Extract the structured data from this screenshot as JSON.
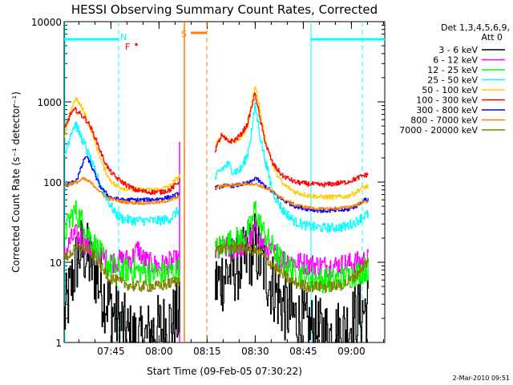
{
  "chart_data": {
    "type": "line",
    "title": "HESSI Observing Summary Count Rates, Corrected",
    "xlabel": "Start Time (09-Feb-05 07:30:22)",
    "ylabel": "Corrected Count Rate (s⁻¹ detector⁻¹)",
    "yscale": "log",
    "ylim": [
      1,
      10000
    ],
    "xlim_minutes_after_start": [
      0,
      100
    ],
    "x_tick_labels": [
      "07:45",
      "08:00",
      "08:15",
      "08:30",
      "08:45",
      "09:00"
    ],
    "x_tick_minutes": [
      14.6,
      29.6,
      44.6,
      59.6,
      74.6,
      89.6
    ],
    "y_tick_labels": [
      "1",
      "10",
      "100",
      "1000",
      "10000"
    ],
    "y_tick_values": [
      1,
      10,
      100,
      1000,
      10000
    ],
    "legend": {
      "title_line1": "Det 1,3,4,5,6,9,",
      "title_line2": "Att 0",
      "placement": "right"
    },
    "date_stamp": "2-Mar-2010 09:51",
    "data_gap_minutes": [
      36,
      47
    ],
    "markers": {
      "night_label": "N",
      "flare_label": "F",
      "saa_label": "S",
      "night_intervals_minutes": [
        [
          0,
          17
        ],
        [
          77,
          100
        ]
      ],
      "saa_interval_minutes": [
        39.5,
        44.5
      ],
      "flare_point_minute": 22.5,
      "flare_point_value": 5200,
      "cyan_dashed_minutes": [
        17,
        93
      ],
      "cyan_solid_minutes": [
        77
      ],
      "orange_solid_minutes": [
        37.5
      ],
      "orange_dashed_minutes": [
        44.5
      ],
      "magenta_solid_minutes": [
        36
      ]
    },
    "series": [
      {
        "name": "3 - 6 keV",
        "color": "#000000",
        "noise": 0.45,
        "points": [
          [
            0,
            2
          ],
          [
            2,
            5
          ],
          [
            4,
            11
          ],
          [
            5,
            14
          ],
          [
            6.5,
            13
          ],
          [
            8,
            10
          ],
          [
            10,
            7
          ],
          [
            12,
            4
          ],
          [
            14,
            3
          ],
          [
            16,
            2
          ],
          [
            18,
            1.7
          ],
          [
            20,
            1.2
          ],
          [
            24,
            1
          ],
          [
            28,
            1.4
          ],
          [
            32,
            1.6
          ],
          [
            36,
            2.2
          ],
          [
            47,
            5
          ],
          [
            50,
            7
          ],
          [
            53,
            8.5
          ],
          [
            56,
            10
          ],
          [
            58,
            13
          ],
          [
            59.5,
            16
          ],
          [
            61,
            11
          ],
          [
            64,
            6
          ],
          [
            68,
            3
          ],
          [
            72,
            2
          ],
          [
            76,
            1.5
          ],
          [
            80,
            1.3
          ],
          [
            84,
            1.2
          ],
          [
            88,
            1.5
          ],
          [
            92,
            2.3
          ],
          [
            95,
            2.8
          ]
        ]
      },
      {
        "name": "6 - 12 keV",
        "color": "#ff00ff",
        "noise": 0.14,
        "points": [
          [
            0,
            12
          ],
          [
            2,
            19
          ],
          [
            3.5,
            22
          ],
          [
            5,
            20
          ],
          [
            7,
            16
          ],
          [
            10,
            13
          ],
          [
            14,
            10
          ],
          [
            18,
            10.5
          ],
          [
            21,
            11
          ],
          [
            23,
            15
          ],
          [
            24.5,
            11
          ],
          [
            27,
            9.5
          ],
          [
            30,
            9
          ],
          [
            33,
            10
          ],
          [
            36,
            10.5
          ],
          [
            47,
            13
          ],
          [
            50,
            15
          ],
          [
            53,
            15
          ],
          [
            56,
            16
          ],
          [
            58.5,
            20
          ],
          [
            59.5,
            28
          ],
          [
            61,
            19
          ],
          [
            64,
            14
          ],
          [
            68,
            11
          ],
          [
            72,
            10
          ],
          [
            76,
            9.5
          ],
          [
            80,
            9
          ],
          [
            84,
            9
          ],
          [
            88,
            9.5
          ],
          [
            92,
            10
          ],
          [
            95,
            11
          ]
        ]
      },
      {
        "name": "12 - 25 keV",
        "color": "#00ff00",
        "noise": 0.16,
        "points": [
          [
            0,
            22
          ],
          [
            2,
            37
          ],
          [
            3.5,
            43
          ],
          [
            5,
            35
          ],
          [
            7,
            25
          ],
          [
            10,
            15
          ],
          [
            14,
            9
          ],
          [
            18,
            8
          ],
          [
            22,
            8
          ],
          [
            26,
            7.5
          ],
          [
            30,
            7
          ],
          [
            33,
            7.5
          ],
          [
            36,
            8
          ],
          [
            47,
            14
          ],
          [
            50,
            17
          ],
          [
            53,
            19
          ],
          [
            56,
            20
          ],
          [
            58.5,
            30
          ],
          [
            59.5,
            48
          ],
          [
            61,
            30
          ],
          [
            64,
            17
          ],
          [
            68,
            10
          ],
          [
            72,
            7.5
          ],
          [
            76,
            6.5
          ],
          [
            80,
            6
          ],
          [
            84,
            6
          ],
          [
            88,
            6.5
          ],
          [
            92,
            7.5
          ],
          [
            95,
            8.5
          ]
        ]
      },
      {
        "name": "25 - 50 keV",
        "color": "#00ffff",
        "noise": 0.06,
        "points": [
          [
            0,
            200
          ],
          [
            2,
            420
          ],
          [
            3.5,
            540
          ],
          [
            5,
            380
          ],
          [
            6.5,
            280
          ],
          [
            8,
            195
          ],
          [
            10,
            120
          ],
          [
            12,
            80
          ],
          [
            14,
            55
          ],
          [
            16,
            40
          ],
          [
            18,
            35
          ],
          [
            22,
            33
          ],
          [
            26,
            33
          ],
          [
            30,
            33
          ],
          [
            33,
            35
          ],
          [
            35,
            42
          ],
          [
            36,
            45
          ],
          [
            47,
            110
          ],
          [
            49,
            145
          ],
          [
            51,
            165
          ],
          [
            53,
            135
          ],
          [
            55,
            145
          ],
          [
            57,
            210
          ],
          [
            58.5,
            450
          ],
          [
            59.5,
            920
          ],
          [
            61,
            380
          ],
          [
            63,
            160
          ],
          [
            65,
            75
          ],
          [
            68,
            45
          ],
          [
            72,
            32
          ],
          [
            76,
            28
          ],
          [
            80,
            27
          ],
          [
            84,
            27
          ],
          [
            88,
            28
          ],
          [
            91,
            32
          ],
          [
            93,
            37
          ],
          [
            95,
            40
          ]
        ]
      },
      {
        "name": "50 - 100 keV",
        "color": "#ffcc00",
        "noise": 0.03,
        "points": [
          [
            0,
            350
          ],
          [
            2,
            800
          ],
          [
            3.5,
            1100
          ],
          [
            5,
            900
          ],
          [
            6.5,
            700
          ],
          [
            8,
            490
          ],
          [
            10,
            280
          ],
          [
            12,
            160
          ],
          [
            14,
            110
          ],
          [
            16,
            90
          ],
          [
            18,
            85
          ],
          [
            22,
            80
          ],
          [
            26,
            80
          ],
          [
            30,
            80
          ],
          [
            33,
            90
          ],
          [
            35,
            110
          ],
          [
            36,
            120
          ],
          [
            47,
            270
          ],
          [
            49,
            390
          ],
          [
            51,
            340
          ],
          [
            53,
            320
          ],
          [
            55,
            360
          ],
          [
            57,
            470
          ],
          [
            58.5,
            950
          ],
          [
            59.5,
            1700
          ],
          [
            61,
            750
          ],
          [
            63,
            300
          ],
          [
            65,
            160
          ],
          [
            68,
            95
          ],
          [
            72,
            75
          ],
          [
            76,
            68
          ],
          [
            80,
            65
          ],
          [
            84,
            65
          ],
          [
            88,
            66
          ],
          [
            91,
            75
          ],
          [
            93,
            85
          ],
          [
            95,
            90
          ]
        ]
      },
      {
        "name": "100 - 300 keV",
        "color": "#ff0000",
        "noise": 0.03,
        "points": [
          [
            0,
            450
          ],
          [
            2,
            720
          ],
          [
            3.5,
            800
          ],
          [
            5,
            700
          ],
          [
            6.5,
            620
          ],
          [
            8,
            500
          ],
          [
            10,
            330
          ],
          [
            12,
            200
          ],
          [
            14,
            140
          ],
          [
            16,
            115
          ],
          [
            18,
            100
          ],
          [
            22,
            80
          ],
          [
            26,
            75
          ],
          [
            30,
            75
          ],
          [
            33,
            80
          ],
          [
            35,
            95
          ],
          [
            36,
            105
          ],
          [
            47,
            250
          ],
          [
            49,
            380
          ],
          [
            51,
            320
          ],
          [
            53,
            330
          ],
          [
            55,
            390
          ],
          [
            57,
            520
          ],
          [
            58.5,
            900
          ],
          [
            59.5,
            1300
          ],
          [
            61,
            600
          ],
          [
            63,
            280
          ],
          [
            65,
            170
          ],
          [
            68,
            120
          ],
          [
            72,
            100
          ],
          [
            76,
            95
          ],
          [
            80,
            92
          ],
          [
            84,
            95
          ],
          [
            88,
            100
          ],
          [
            91,
            110
          ],
          [
            93,
            120
          ],
          [
            95,
            125
          ]
        ]
      },
      {
        "name": "300 - 800 keV",
        "color": "#0000ff",
        "noise": 0.025,
        "points": [
          [
            0,
            90
          ],
          [
            2,
            95
          ],
          [
            4,
            110
          ],
          [
            5.5,
            160
          ],
          [
            6.5,
            210
          ],
          [
            7.5,
            190
          ],
          [
            9,
            140
          ],
          [
            11,
            90
          ],
          [
            14,
            65
          ],
          [
            18,
            60
          ],
          [
            22,
            60
          ],
          [
            26,
            60
          ],
          [
            30,
            62
          ],
          [
            33,
            65
          ],
          [
            36,
            72
          ],
          [
            47,
            85
          ],
          [
            50,
            90
          ],
          [
            53,
            90
          ],
          [
            56,
            95
          ],
          [
            58.5,
            100
          ],
          [
            59.5,
            115
          ],
          [
            61,
            100
          ],
          [
            64,
            80
          ],
          [
            68,
            60
          ],
          [
            72,
            50
          ],
          [
            76,
            46
          ],
          [
            80,
            44
          ],
          [
            84,
            44
          ],
          [
            88,
            45
          ],
          [
            91,
            50
          ],
          [
            93,
            58
          ],
          [
            95,
            62
          ]
        ]
      },
      {
        "name": "800 - 7000 keV",
        "color": "#ff8000",
        "noise": 0.02,
        "points": [
          [
            0,
            90
          ],
          [
            2,
            95
          ],
          [
            4,
            100
          ],
          [
            6,
            110
          ],
          [
            8,
            100
          ],
          [
            10,
            85
          ],
          [
            12,
            70
          ],
          [
            14,
            62
          ],
          [
            18,
            57
          ],
          [
            22,
            55
          ],
          [
            26,
            55
          ],
          [
            30,
            56
          ],
          [
            33,
            60
          ],
          [
            36,
            66
          ],
          [
            47,
            85
          ],
          [
            50,
            90
          ],
          [
            53,
            92
          ],
          [
            56,
            95
          ],
          [
            58.5,
            96
          ],
          [
            59.5,
            95
          ],
          [
            61,
            90
          ],
          [
            64,
            80
          ],
          [
            68,
            62
          ],
          [
            72,
            52
          ],
          [
            76,
            48
          ],
          [
            80,
            46
          ],
          [
            84,
            47
          ],
          [
            88,
            48
          ],
          [
            91,
            52
          ],
          [
            93,
            56
          ],
          [
            95,
            58
          ]
        ]
      },
      {
        "name": "7000 - 20000 keV",
        "color": "#808000",
        "noise": 0.07,
        "points": [
          [
            0,
            11
          ],
          [
            2,
            13
          ],
          [
            4,
            15
          ],
          [
            6,
            15.5
          ],
          [
            8,
            14
          ],
          [
            10,
            11
          ],
          [
            12,
            8
          ],
          [
            14,
            6.5
          ],
          [
            18,
            5.5
          ],
          [
            22,
            5
          ],
          [
            26,
            5
          ],
          [
            30,
            5
          ],
          [
            33,
            5.5
          ],
          [
            36,
            6
          ],
          [
            47,
            14
          ],
          [
            50,
            15
          ],
          [
            53,
            15.5
          ],
          [
            56,
            15
          ],
          [
            59.5,
            14
          ],
          [
            61,
            13
          ],
          [
            64,
            10
          ],
          [
            68,
            7
          ],
          [
            72,
            5.5
          ],
          [
            76,
            5
          ],
          [
            80,
            5
          ],
          [
            84,
            5
          ],
          [
            88,
            5.5
          ],
          [
            91,
            7
          ],
          [
            93,
            9
          ],
          [
            95,
            10
          ]
        ]
      }
    ]
  }
}
